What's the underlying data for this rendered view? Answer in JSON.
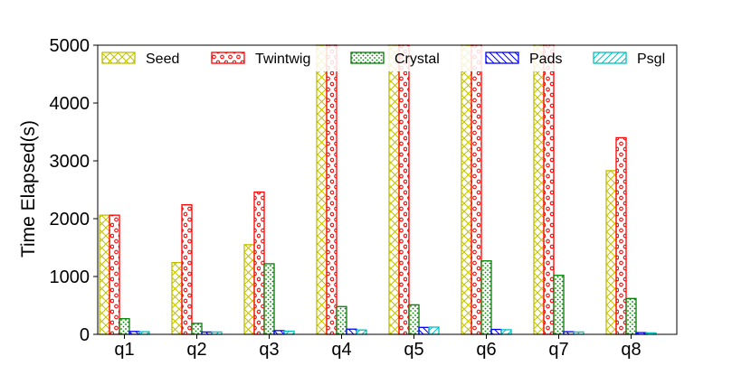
{
  "chart_data": {
    "type": "bar",
    "title": "",
    "xlabel": "",
    "ylabel": "Time Elapsed(s)",
    "ylim": [
      0,
      5000
    ],
    "yticks": [
      0,
      1000,
      2000,
      3000,
      4000,
      5000
    ],
    "categories": [
      "q1",
      "q2",
      "q3",
      "q4",
      "q5",
      "q6",
      "q7",
      "q8"
    ],
    "legend_position": "top",
    "grid": false,
    "series": [
      {
        "name": "Seed",
        "color": "#bfbf00",
        "pattern": "crosshatch",
        "values": [
          2060,
          1240,
          1550,
          5000,
          5000,
          5000,
          5000,
          2830
        ]
      },
      {
        "name": "Twintwig",
        "color": "#ff0000",
        "pattern": "circles",
        "values": [
          2060,
          2240,
          2460,
          5000,
          5000,
          5000,
          5000,
          3400
        ]
      },
      {
        "name": "Crystal",
        "color": "#008000",
        "pattern": "dots",
        "values": [
          270,
          190,
          1220,
          480,
          510,
          1270,
          1020,
          620
        ]
      },
      {
        "name": "Pads",
        "color": "#0000ff",
        "pattern": "backslash",
        "values": [
          50,
          40,
          65,
          90,
          120,
          85,
          45,
          30
        ]
      },
      {
        "name": "Psgl",
        "color": "#00bfbf",
        "pattern": "slash",
        "values": [
          45,
          40,
          55,
          75,
          125,
          80,
          40,
          25
        ]
      }
    ]
  }
}
